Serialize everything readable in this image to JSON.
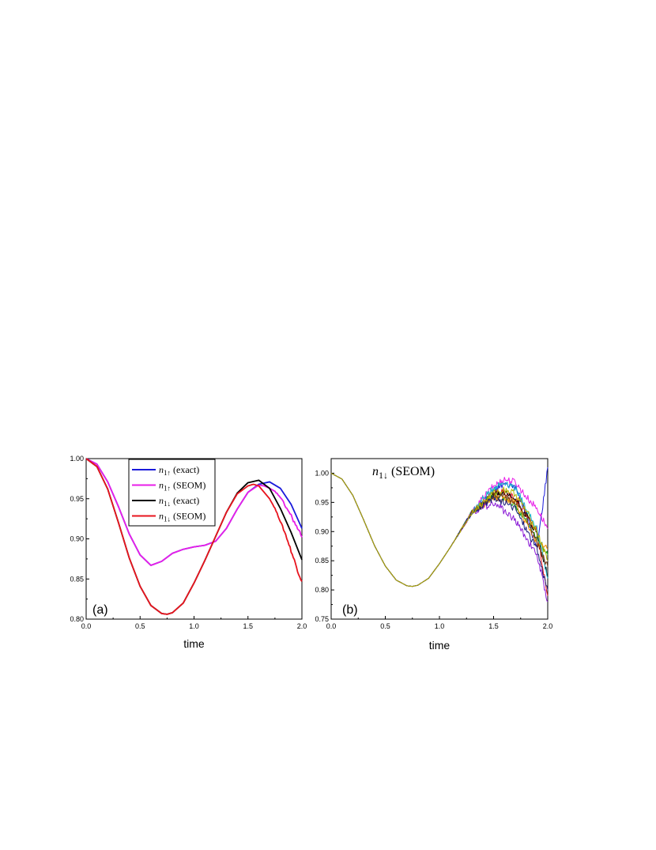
{
  "chart_data": [
    {
      "panel": "(a)",
      "type": "line",
      "xlabel": "time",
      "ylabel": "",
      "xlim": [
        0.0,
        2.0
      ],
      "ylim": [
        0.8,
        1.0
      ],
      "xticks": [
        "0.0",
        "0.5",
        "1.0",
        "1.5",
        "2.0"
      ],
      "yticks": [
        "0.80",
        "0.85",
        "0.90",
        "0.95",
        "1.00"
      ],
      "legend_placement": "top-center",
      "series": [
        {
          "name": "n1↑ (exact)",
          "var": "n",
          "sub": "1↑",
          "suffix": " (exact)",
          "color": "#1a1adb",
          "x": [
            0.0,
            0.1,
            0.2,
            0.3,
            0.4,
            0.5,
            0.6,
            0.7,
            0.8,
            0.9,
            1.0,
            1.1,
            1.2,
            1.3,
            1.4,
            1.5,
            1.6,
            1.7,
            1.8,
            1.9,
            2.0
          ],
          "y": [
            1.0,
            0.993,
            0.971,
            0.94,
            0.906,
            0.88,
            0.867,
            0.872,
            0.882,
            0.887,
            0.89,
            0.892,
            0.897,
            0.913,
            0.937,
            0.958,
            0.968,
            0.971,
            0.963,
            0.943,
            0.913
          ]
        },
        {
          "name": "n1↑ (SEOM)",
          "var": "n",
          "sub": "1↑",
          "suffix": " (SEOM)",
          "color": "#e81ee8",
          "x": [
            0.0,
            0.1,
            0.2,
            0.3,
            0.4,
            0.5,
            0.6,
            0.7,
            0.8,
            0.9,
            1.0,
            1.1,
            1.2,
            1.3,
            1.4,
            1.5,
            1.6,
            1.65,
            1.7,
            1.75,
            1.8,
            1.85,
            1.9,
            1.95,
            2.0
          ],
          "y": [
            1.0,
            0.993,
            0.971,
            0.94,
            0.906,
            0.88,
            0.867,
            0.872,
            0.882,
            0.887,
            0.89,
            0.892,
            0.897,
            0.913,
            0.937,
            0.958,
            0.967,
            0.966,
            0.963,
            0.959,
            0.952,
            0.94,
            0.929,
            0.915,
            0.902
          ]
        },
        {
          "name": "n1↓ (exact)",
          "var": "n",
          "sub": "1↓",
          "suffix": " (exact)",
          "color": "#000000",
          "x": [
            0.0,
            0.1,
            0.2,
            0.3,
            0.4,
            0.5,
            0.6,
            0.7,
            0.75,
            0.8,
            0.9,
            1.0,
            1.1,
            1.2,
            1.3,
            1.4,
            1.5,
            1.6,
            1.7,
            1.8,
            1.9,
            2.0
          ],
          "y": [
            1.0,
            0.99,
            0.962,
            0.92,
            0.876,
            0.841,
            0.817,
            0.807,
            0.806,
            0.808,
            0.82,
            0.845,
            0.873,
            0.903,
            0.933,
            0.957,
            0.97,
            0.973,
            0.963,
            0.938,
            0.908,
            0.874
          ]
        },
        {
          "name": "n1↓ (SEOM)",
          "var": "n",
          "sub": "1↓",
          "suffix": " (SEOM)",
          "color": "#e8141e",
          "x": [
            0.0,
            0.1,
            0.2,
            0.3,
            0.4,
            0.5,
            0.6,
            0.7,
            0.75,
            0.8,
            0.9,
            1.0,
            1.1,
            1.2,
            1.3,
            1.4,
            1.5,
            1.55,
            1.6,
            1.65,
            1.7,
            1.75,
            1.8,
            1.85,
            1.9,
            1.95,
            2.0
          ],
          "y": [
            1.0,
            0.99,
            0.962,
            0.92,
            0.876,
            0.841,
            0.817,
            0.807,
            0.806,
            0.808,
            0.82,
            0.845,
            0.873,
            0.903,
            0.933,
            0.956,
            0.966,
            0.968,
            0.966,
            0.958,
            0.95,
            0.938,
            0.922,
            0.905,
            0.885,
            0.865,
            0.847
          ]
        }
      ]
    },
    {
      "panel": "(b)",
      "type": "line",
      "xlabel": "time",
      "ylabel": "",
      "xlim": [
        0.0,
        2.0
      ],
      "ylim": [
        0.75,
        1.025
      ],
      "xticks": [
        "0.0",
        "0.5",
        "1.0",
        "1.5",
        "2.0"
      ],
      "yticks": [
        "0.75",
        "0.80",
        "0.85",
        "0.90",
        "0.95",
        "1.00"
      ],
      "annotation": {
        "var": "n",
        "sub": "1↓",
        "suffix": " (SEOM)"
      },
      "common_curve": {
        "x": [
          0.0,
          0.1,
          0.2,
          0.3,
          0.4,
          0.5,
          0.6,
          0.7,
          0.75,
          0.8,
          0.9,
          1.0,
          1.1,
          1.2,
          1.3
        ],
        "y": [
          1.0,
          0.99,
          0.962,
          0.92,
          0.876,
          0.841,
          0.817,
          0.807,
          0.806,
          0.808,
          0.82,
          0.845,
          0.873,
          0.903,
          0.933
        ]
      },
      "realizations": [
        {
          "color": "#1a1adb",
          "tail_x": [
            1.4,
            1.5,
            1.6,
            1.7,
            1.8,
            1.9,
            2.0
          ],
          "tail_y": [
            0.952,
            0.97,
            0.982,
            0.978,
            0.93,
            0.87,
            1.01
          ]
        },
        {
          "color": "#e81ee8",
          "tail_x": [
            1.4,
            1.5,
            1.6,
            1.7,
            1.8,
            1.9,
            2.0
          ],
          "tail_y": [
            0.957,
            0.978,
            0.99,
            0.985,
            0.96,
            0.94,
            0.905
          ]
        },
        {
          "color": "#e8141e",
          "tail_x": [
            1.4,
            1.5,
            1.6,
            1.7,
            1.8,
            1.9,
            2.0
          ],
          "tail_y": [
            0.95,
            0.965,
            0.968,
            0.958,
            0.93,
            0.9,
            0.79
          ]
        },
        {
          "color": "#000000",
          "tail_x": [
            1.4,
            1.5,
            1.6,
            1.7,
            1.8,
            1.9,
            2.0
          ],
          "tail_y": [
            0.948,
            0.963,
            0.965,
            0.955,
            0.928,
            0.895,
            0.825
          ]
        },
        {
          "color": "#1a9e1a",
          "tail_x": [
            1.4,
            1.5,
            1.6,
            1.7,
            1.8,
            1.9,
            2.0
          ],
          "tail_y": [
            0.947,
            0.96,
            0.958,
            0.945,
            0.92,
            0.89,
            0.86
          ]
        },
        {
          "color": "#f08c00",
          "tail_x": [
            1.4,
            1.5,
            1.6,
            1.7,
            1.8,
            1.9,
            2.0
          ],
          "tail_y": [
            0.945,
            0.958,
            0.955,
            0.95,
            0.915,
            0.88,
            0.87
          ]
        },
        {
          "color": "#14b4c8",
          "tail_x": [
            1.4,
            1.5,
            1.6,
            1.7,
            1.8,
            1.9,
            2.0
          ],
          "tail_y": [
            0.955,
            0.975,
            0.985,
            0.975,
            0.94,
            0.905,
            0.82
          ]
        },
        {
          "color": "#8a1ad6",
          "tail_x": [
            1.4,
            1.5,
            1.6,
            1.7,
            1.8,
            1.9,
            2.0
          ],
          "tail_y": [
            0.94,
            0.95,
            0.935,
            0.92,
            0.89,
            0.86,
            0.78
          ]
        },
        {
          "color": "#7a3a14",
          "tail_x": [
            1.4,
            1.5,
            1.6,
            1.7,
            1.8,
            1.9,
            2.0
          ],
          "tail_y": [
            0.946,
            0.962,
            0.962,
            0.95,
            0.925,
            0.88,
            0.84
          ]
        },
        {
          "color": "#1a1a7a",
          "tail_x": [
            1.4,
            1.5,
            1.6,
            1.7,
            1.8,
            1.9,
            2.0
          ],
          "tail_y": [
            0.944,
            0.956,
            0.95,
            0.94,
            0.905,
            0.87,
            0.8
          ]
        },
        {
          "color": "#b4b400",
          "tail_x": [
            1.4,
            1.5,
            1.6,
            1.7,
            1.8,
            1.9,
            2.0
          ],
          "tail_y": [
            0.949,
            0.966,
            0.972,
            0.965,
            0.935,
            0.9,
            0.85
          ]
        }
      ]
    }
  ]
}
